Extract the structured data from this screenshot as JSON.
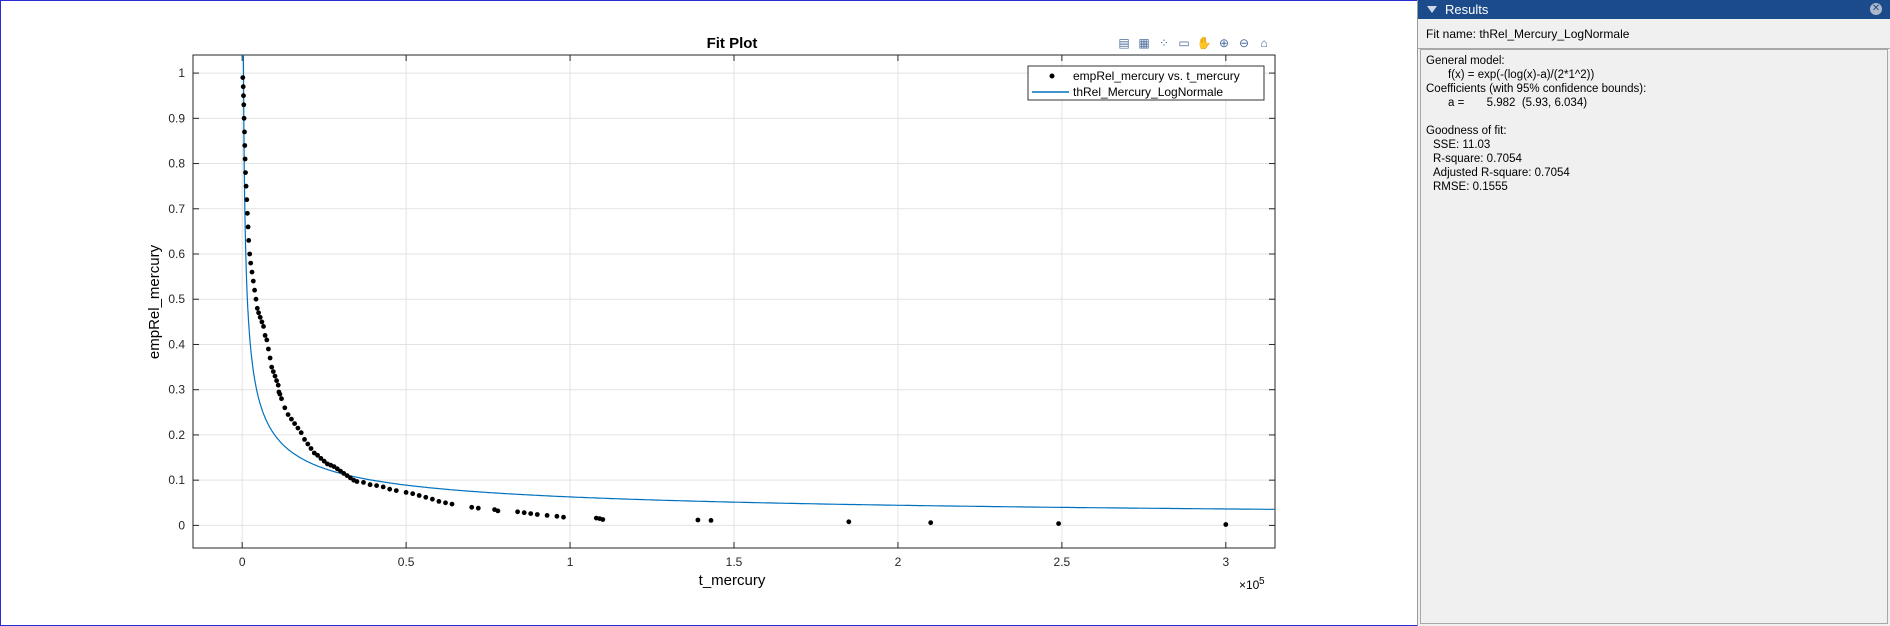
{
  "plot": {
    "title": "Fit Plot",
    "xlabel": "t_mercury",
    "ylabel": "empRel_mercury",
    "x_exponent_base": "×10",
    "x_exponent_power": "5",
    "legend": {
      "data_label": "empRel_mercury vs. t_mercury",
      "fit_label": "thRel_Mercury_LogNormale"
    },
    "colors": {
      "fit": "#0072bd",
      "data": "#000000"
    }
  },
  "toolbar": {
    "icons": [
      "legend-icon",
      "grid-icon",
      "data-cursor-icon",
      "brush-icon",
      "pan-icon",
      "zoom-in-icon",
      "zoom-out-icon",
      "home-icon"
    ]
  },
  "results": {
    "header": "Results",
    "fit_name": "Fit name: thRel_Mercury_LogNormale",
    "general_model_label": "General model:",
    "formula": "f(x) = exp(-(log(x)-a)/(2*1^2))",
    "coeff_label": "Coefficients (with 95% confidence bounds):",
    "coeff_a": "a =       5.982  (5.93, 6.034)",
    "gof_label": "Goodness of fit:",
    "sse": "SSE: 11.03",
    "rsq": "R-square: 0.7054",
    "adj_rsq": "Adjusted R-square: 0.7054",
    "rmse": "RMSE: 0.1555"
  },
  "chart_data": {
    "type": "scatter",
    "title": "Fit Plot",
    "xlabel": "t_mercury",
    "ylabel": "empRel_mercury",
    "xlim": [
      -0.15,
      3.15
    ],
    "ylim": [
      -0.05,
      1.04
    ],
    "x_unit_scale": "×10^5",
    "xticks": [
      0,
      0.5,
      1,
      1.5,
      2,
      2.5,
      3
    ],
    "xtick_labels": [
      "0",
      "0.5",
      "1",
      "1.5",
      "2",
      "2.5",
      "3"
    ],
    "yticks": [
      0,
      0.1,
      0.2,
      0.3,
      0.4,
      0.5,
      0.6,
      0.7,
      0.8,
      0.9,
      1
    ],
    "ytick_labels": [
      "0",
      "0.1",
      "0.2",
      "0.3",
      "0.4",
      "0.5",
      "0.6",
      "0.7",
      "0.8",
      "0.9",
      "1"
    ],
    "grid": true,
    "legend_position": "top-right",
    "series": [
      {
        "name": "empRel_mercury vs. t_mercury",
        "kind": "points",
        "x": [
          0.002,
          0.003,
          0.004,
          0.005,
          0.006,
          0.007,
          0.008,
          0.009,
          0.01,
          0.012,
          0.014,
          0.016,
          0.018,
          0.02,
          0.023,
          0.026,
          0.03,
          0.034,
          0.038,
          0.042,
          0.046,
          0.05,
          0.055,
          0.06,
          0.065,
          0.07,
          0.075,
          0.08,
          0.085,
          0.09,
          0.095,
          0.1,
          0.105,
          0.11,
          0.112,
          0.115,
          0.12,
          0.13,
          0.14,
          0.15,
          0.16,
          0.17,
          0.18,
          0.19,
          0.2,
          0.21,
          0.22,
          0.23,
          0.24,
          0.25,
          0.26,
          0.27,
          0.28,
          0.29,
          0.3,
          0.31,
          0.32,
          0.33,
          0.34,
          0.35,
          0.37,
          0.39,
          0.41,
          0.43,
          0.45,
          0.47,
          0.5,
          0.52,
          0.54,
          0.56,
          0.58,
          0.6,
          0.62,
          0.64,
          0.7,
          0.72,
          0.77,
          0.78,
          0.84,
          0.86,
          0.88,
          0.9,
          0.93,
          0.96,
          0.98,
          1.08,
          1.09,
          1.1,
          1.39,
          1.43,
          1.85,
          2.1,
          2.49,
          3.0
        ],
        "y": [
          0.99,
          0.97,
          0.95,
          0.93,
          0.9,
          0.87,
          0.84,
          0.81,
          0.78,
          0.75,
          0.72,
          0.69,
          0.66,
          0.63,
          0.6,
          0.58,
          0.56,
          0.54,
          0.52,
          0.5,
          0.48,
          0.47,
          0.46,
          0.45,
          0.44,
          0.42,
          0.41,
          0.39,
          0.37,
          0.35,
          0.34,
          0.33,
          0.32,
          0.31,
          0.295,
          0.29,
          0.28,
          0.26,
          0.245,
          0.235,
          0.225,
          0.215,
          0.205,
          0.19,
          0.18,
          0.17,
          0.16,
          0.155,
          0.148,
          0.142,
          0.136,
          0.133,
          0.13,
          0.125,
          0.12,
          0.115,
          0.11,
          0.105,
          0.1,
          0.097,
          0.095,
          0.09,
          0.088,
          0.085,
          0.08,
          0.077,
          0.073,
          0.07,
          0.066,
          0.062,
          0.058,
          0.053,
          0.05,
          0.047,
          0.04,
          0.038,
          0.035,
          0.032,
          0.03,
          0.028,
          0.026,
          0.024,
          0.022,
          0.02,
          0.018,
          0.016,
          0.015,
          0.013,
          0.012,
          0.011,
          0.008,
          0.006,
          0.004,
          0.002
        ]
      },
      {
        "name": "thRel_Mercury_LogNormale",
        "kind": "fit",
        "formula": "f(x) = exp(-(log(x)-a)/(2*1^2))",
        "a": 5.982,
        "x_scale": 100000
      }
    ]
  }
}
